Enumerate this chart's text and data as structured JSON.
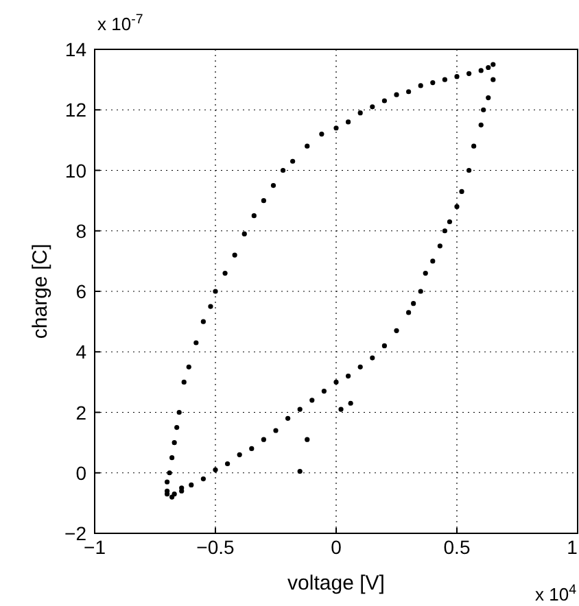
{
  "chart_data": {
    "type": "scatter",
    "xlabel": "voltage [V]",
    "ylabel": "charge [C]",
    "annotations": [
      "x 10$^{-7}$",
      "x 10$^{4}$"
    ],
    "xlim": [
      -1,
      1
    ],
    "xticks": [
      -1,
      -0.5,
      0,
      0.5,
      1
    ],
    "ylim": [
      -2,
      14
    ],
    "yticks": [
      -2,
      0,
      2,
      4,
      6,
      8,
      10,
      12,
      14
    ],
    "grid": true,
    "marker": "circle",
    "series": [
      {
        "color": "#000000",
        "x": [
          -0.7,
          -0.69,
          -0.68,
          -0.67,
          -0.66,
          -0.65,
          -0.63,
          -0.61,
          -0.58,
          -0.55,
          -0.52,
          -0.5,
          -0.46,
          -0.42,
          -0.38,
          -0.34,
          -0.3,
          -0.26,
          -0.22,
          -0.18,
          -0.12,
          -0.06,
          0,
          0.05,
          0.1,
          0.15,
          0.2,
          0.25,
          0.3,
          0.35,
          0.4,
          0.45,
          0.5,
          0.55,
          0.6,
          0.63,
          0.65,
          0.65,
          0.63,
          0.61,
          0.6,
          0.57,
          0.55,
          0.52,
          0.5,
          0.47,
          0.45,
          0.43,
          0.4,
          0.37,
          0.35,
          0.32,
          0.3,
          0.25,
          0.2,
          0.15,
          0.1,
          0.05,
          0,
          -0.05,
          -0.1,
          -0.15,
          -0.2,
          -0.25,
          -0.3,
          -0.35,
          -0.4,
          -0.45,
          -0.5,
          -0.55,
          -0.6,
          -0.64,
          -0.67,
          -0.7,
          -0.15,
          0.02,
          0.06,
          -0.12,
          -0.7,
          -0.68,
          -0.64
        ],
        "values": [
          -0.6,
          0,
          0.5,
          1,
          1.5,
          2,
          3,
          3.5,
          4.3,
          5,
          5.5,
          6,
          6.6,
          7.2,
          7.9,
          8.5,
          9,
          9.5,
          10,
          10.3,
          10.8,
          11.2,
          11.4,
          11.6,
          11.9,
          12.1,
          12.3,
          12.5,
          12.6,
          12.8,
          12.9,
          13,
          13.1,
          13.2,
          13.3,
          13.4,
          13.5,
          13.0,
          12.4,
          12,
          11.5,
          10.8,
          10,
          9.3,
          8.8,
          8.3,
          8,
          7.5,
          7,
          6.6,
          6,
          5.6,
          5.3,
          4.7,
          4.2,
          3.8,
          3.5,
          3.2,
          3,
          2.7,
          2.4,
          2.1,
          1.8,
          1.4,
          1.1,
          0.8,
          0.6,
          0.3,
          0.1,
          -0.2,
          -0.4,
          -0.6,
          -0.7,
          -0.3,
          0.05,
          2.1,
          2.3,
          1.1,
          -0.7,
          -0.8,
          -0.5
        ]
      }
    ]
  }
}
